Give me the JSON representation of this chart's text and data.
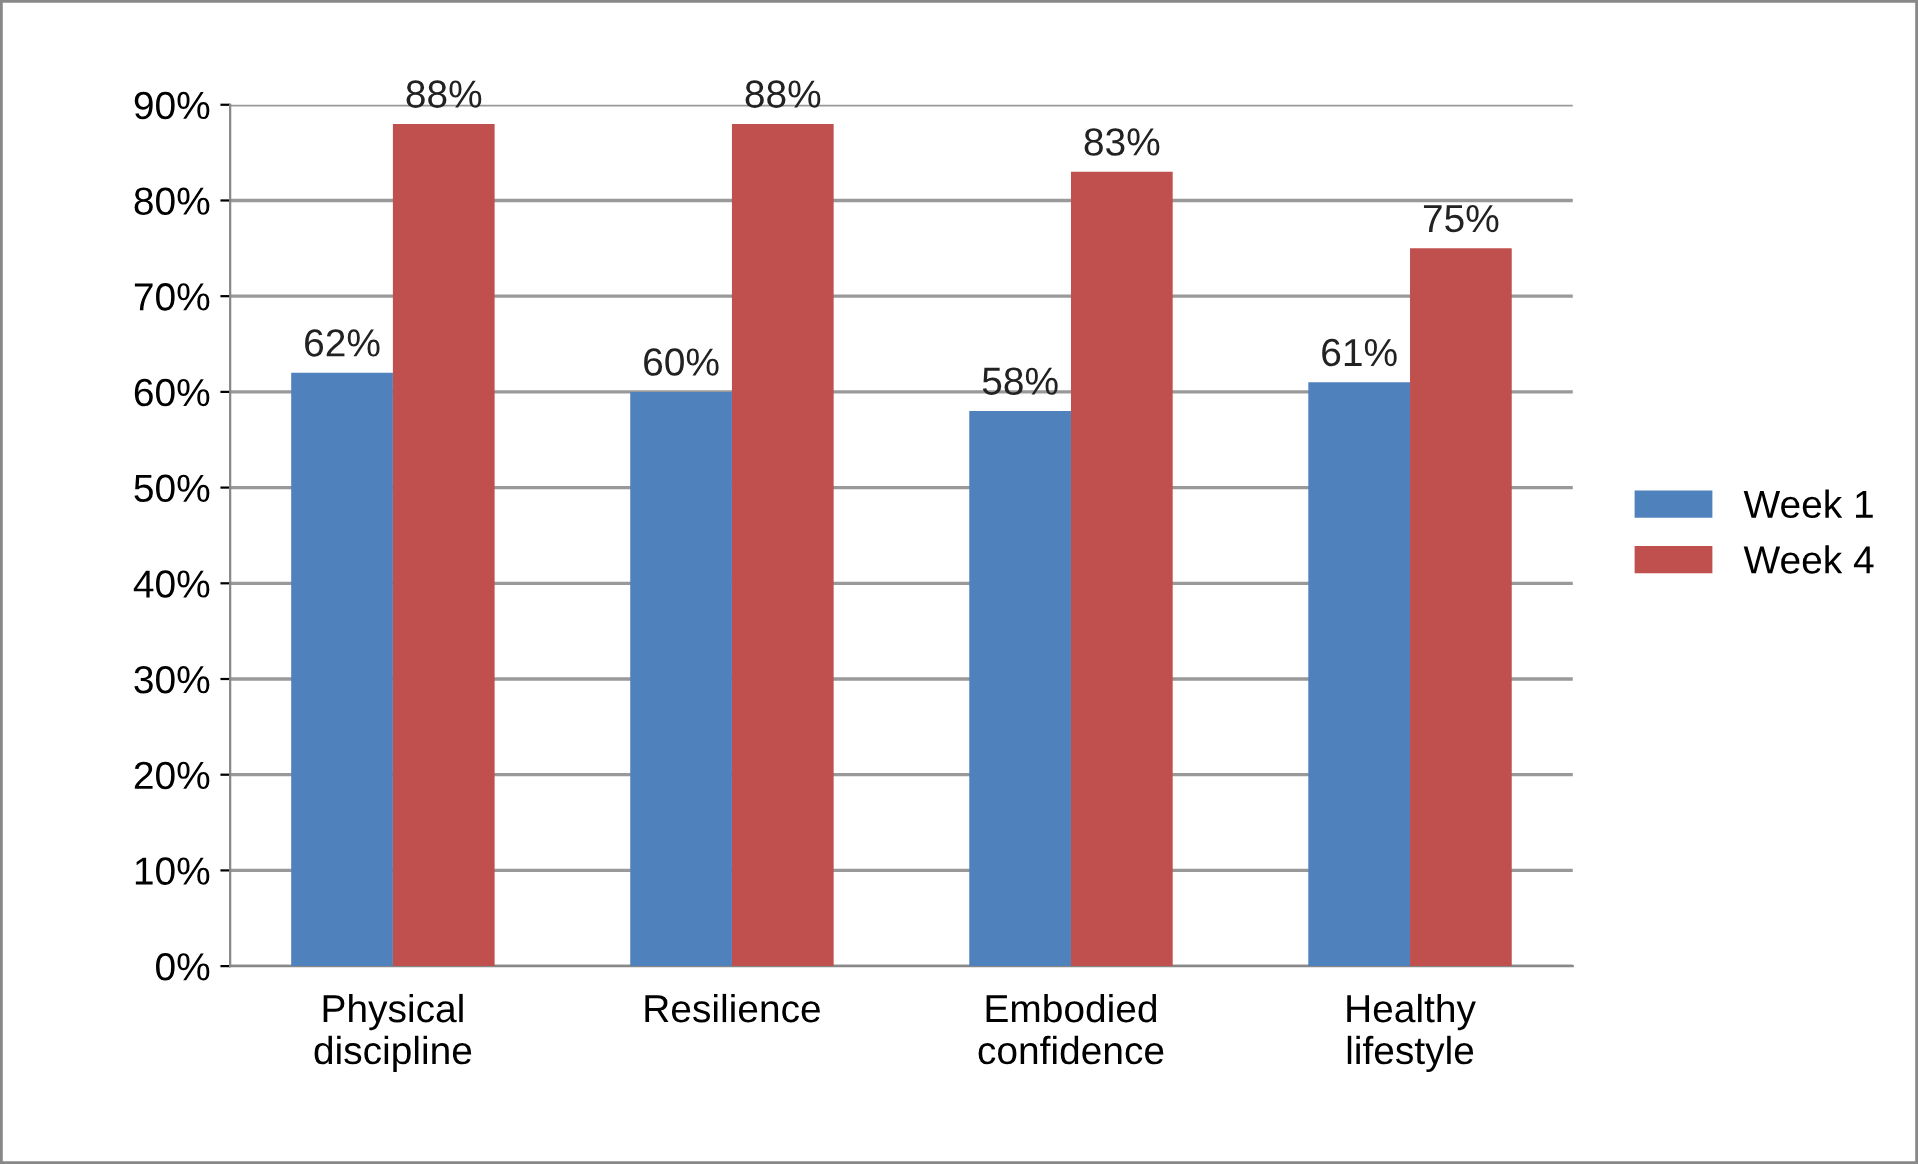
{
  "chart_data": {
    "type": "bar",
    "categories": [
      "Physical\ndiscipline",
      "Resilience",
      "Embodied\nconfidence",
      "Healthy\nlifestyle"
    ],
    "series": [
      {
        "name": "Week 1",
        "color": "#4f81bd",
        "values": [
          62,
          60,
          58,
          61
        ],
        "value_labels": [
          "62%",
          "60%",
          "58%",
          "61%"
        ]
      },
      {
        "name": "Week 4",
        "color": "#c0504d",
        "values": [
          88,
          88,
          83,
          75
        ],
        "value_labels": [
          "88%",
          "88%",
          "83%",
          "75%"
        ]
      }
    ],
    "ylim": [
      0,
      90
    ],
    "yticks": [
      {
        "value": 0,
        "label": "0%"
      },
      {
        "value": 10,
        "label": "10%"
      },
      {
        "value": 20,
        "label": "20%"
      },
      {
        "value": 30,
        "label": "30%"
      },
      {
        "value": 40,
        "label": "40%"
      },
      {
        "value": 50,
        "label": "50%"
      },
      {
        "value": 60,
        "label": "60%"
      },
      {
        "value": 70,
        "label": "70%"
      },
      {
        "value": 80,
        "label": "80%"
      },
      {
        "value": 90,
        "label": "90%"
      }
    ],
    "grid": "y",
    "legend": "right"
  }
}
